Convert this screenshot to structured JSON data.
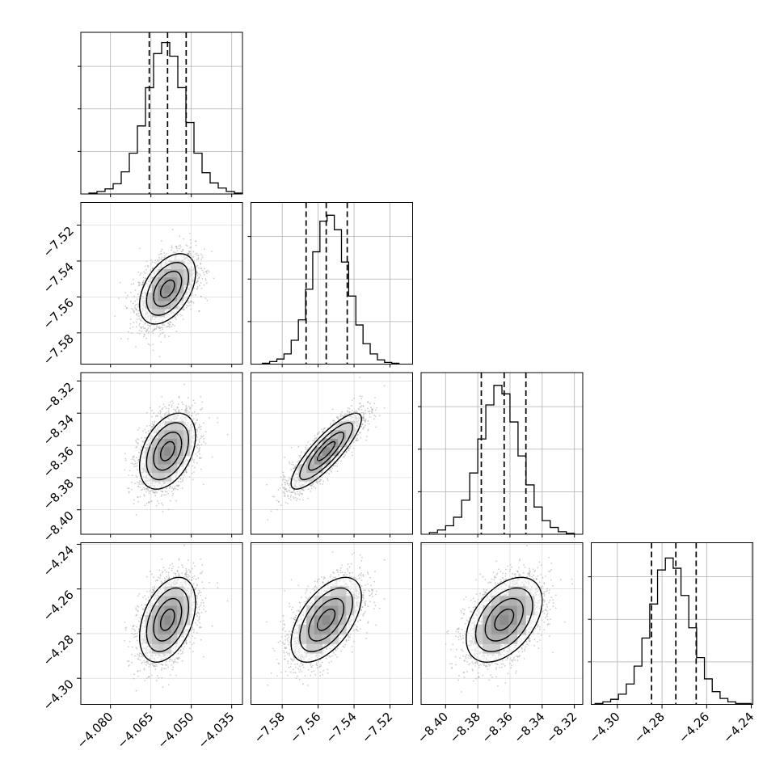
{
  "chart_data": {
    "type": "corner",
    "parameters": [
      {
        "xlim": [
          -4.091,
          -4.031
        ],
        "ticks": [
          -4.08,
          -4.065,
          -4.05,
          -4.035
        ],
        "tick_labels": [
          "−4.080",
          "−4.065",
          "−4.050",
          "−4.035"
        ],
        "histogram": {
          "bins": [
            -4.088,
            -4.085,
            -4.082,
            -4.079,
            -4.076,
            -4.073,
            -4.07,
            -4.067,
            -4.064,
            -4.061,
            -4.058,
            -4.055,
            -4.052,
            -4.049,
            -4.046,
            -4.043,
            -4.04,
            -4.037,
            -4.034,
            -4.031
          ],
          "counts": [
            1,
            3,
            6,
            12,
            26,
            48,
            80,
            125,
            165,
            178,
            162,
            125,
            84,
            48,
            25,
            13,
            7,
            3,
            1
          ],
          "ymax": 190,
          "quantiles": [
            -4.0656,
            -4.0588,
            -4.0519
          ]
        }
      },
      {
        "xlim": [
          -7.5974,
          -7.5074
        ],
        "ticks": [
          -7.58,
          -7.56,
          -7.54,
          -7.52
        ],
        "tick_labels": [
          "−7.58",
          "−7.56",
          "−7.54",
          "−7.52"
        ],
        "histogram": {
          "bins": [
            -7.591,
            -7.587,
            -7.583,
            -7.579,
            -7.575,
            -7.571,
            -7.567,
            -7.563,
            -7.559,
            -7.555,
            -7.551,
            -7.547,
            -7.543,
            -7.539,
            -7.535,
            -7.531,
            -7.527,
            -7.523,
            -7.519,
            -7.515
          ],
          "counts": [
            1,
            3,
            6,
            12,
            28,
            52,
            88,
            132,
            168,
            175,
            158,
            120,
            80,
            46,
            24,
            12,
            5,
            2,
            1
          ],
          "ymax": 190,
          "quantiles": [
            -7.5667,
            -7.5555,
            -7.5438
          ]
        }
      },
      {
        "xlim": [
          -8.4152,
          -8.3148
        ],
        "ticks": [
          -8.4,
          -8.38,
          -8.36,
          -8.34,
          -8.32
        ],
        "tick_labels": [
          "−8.40",
          "−8.38",
          "−8.36",
          "−8.34",
          "−8.32"
        ],
        "histogram": {
          "bins": [
            -8.41,
            -8.405,
            -8.4,
            -8.395,
            -8.39,
            -8.385,
            -8.38,
            -8.375,
            -8.37,
            -8.365,
            -8.36,
            -8.355,
            -8.35,
            -8.345,
            -8.34,
            -8.335,
            -8.33,
            -8.325,
            -8.32
          ],
          "counts": [
            2,
            5,
            10,
            20,
            40,
            72,
            112,
            152,
            175,
            165,
            132,
            92,
            58,
            32,
            16,
            8,
            3,
            1
          ],
          "ymax": 190,
          "quantiles": [
            -8.3778,
            -8.3636,
            -8.3501
          ]
        }
      },
      {
        "xlim": [
          -4.3117,
          -4.2393
        ],
        "ticks": [
          -4.3,
          -4.28,
          -4.26,
          -4.24
        ],
        "tick_labels": [
          "−4.30",
          "−4.28",
          "−4.26",
          "−4.24"
        ],
        "histogram": {
          "bins": [
            -4.31,
            -4.3065,
            -4.303,
            -4.2995,
            -4.296,
            -4.2925,
            -4.289,
            -4.2855,
            -4.282,
            -4.2785,
            -4.275,
            -4.2715,
            -4.268,
            -4.2645,
            -4.261,
            -4.2575,
            -4.254,
            -4.2505,
            -4.247,
            -4.2435,
            -4.24
          ],
          "counts": [
            1,
            3,
            6,
            12,
            24,
            45,
            78,
            118,
            158,
            172,
            160,
            128,
            90,
            55,
            30,
            15,
            7,
            3,
            1,
            1
          ],
          "ymax": 190,
          "quantiles": [
            -4.2847,
            -4.2738,
            -4.2647
          ]
        }
      }
    ],
    "scatter_panels": [
      {
        "x_param": 0,
        "y_param": 1,
        "center": [
          -4.0588,
          -7.5555
        ],
        "sd": [
          0.0052,
          0.0098
        ],
        "rho": 0.45
      },
      {
        "x_param": 0,
        "y_param": 2,
        "center": [
          -4.0588,
          -8.3636
        ],
        "sd": [
          0.0052,
          0.0118
        ],
        "rho": 0.4
      },
      {
        "x_param": 1,
        "y_param": 2,
        "center": [
          -7.5555,
          -8.3636
        ],
        "sd": [
          0.0098,
          0.0118
        ],
        "rho": 0.85
      },
      {
        "x_param": 0,
        "y_param": 3,
        "center": [
          -4.0588,
          -4.2738
        ],
        "sd": [
          0.0052,
          0.0095
        ],
        "rho": 0.4
      },
      {
        "x_param": 1,
        "y_param": 3,
        "center": [
          -7.5555,
          -4.2738
        ],
        "sd": [
          0.0098,
          0.0095
        ],
        "rho": 0.55
      },
      {
        "x_param": 2,
        "y_param": 3,
        "center": [
          -8.3636,
          -4.2738
        ],
        "sd": [
          0.0118,
          0.0095
        ],
        "rho": 0.45
      }
    ],
    "contour_levels_sigma": [
      0.5,
      1.0,
      1.5,
      2.0
    ],
    "grid": true,
    "colors": {
      "points": "#9a9a9a",
      "lines": "#000000",
      "grid": "#b0b0b0"
    }
  }
}
